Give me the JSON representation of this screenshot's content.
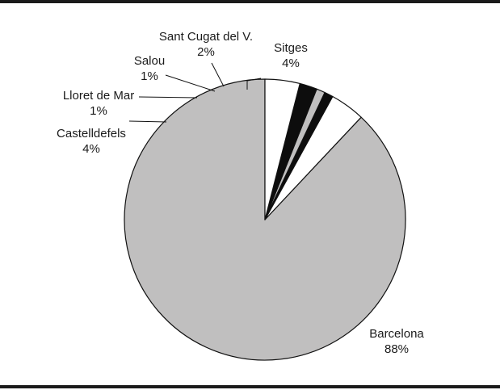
{
  "chart_data": {
    "type": "pie",
    "slices": [
      {
        "label": "Barcelona",
        "pct_text": "88%",
        "value": 88,
        "color": "#c0bfbf"
      },
      {
        "label": "Castelldefels",
        "pct_text": "4%",
        "value": 4,
        "color": "#ffffff"
      },
      {
        "label": "Lloret de Mar",
        "pct_text": "1%",
        "value": 1,
        "color": "#0d0d0d"
      },
      {
        "label": "Salou",
        "pct_text": "1%",
        "value": 1,
        "color": "#c0bfbf"
      },
      {
        "label": "Sant Cugat del V.",
        "pct_text": "2%",
        "value": 2,
        "color": "#0d0d0d"
      },
      {
        "label": "Sitges",
        "pct_text": "4%",
        "value": 4,
        "color": "#ffffff"
      }
    ]
  }
}
